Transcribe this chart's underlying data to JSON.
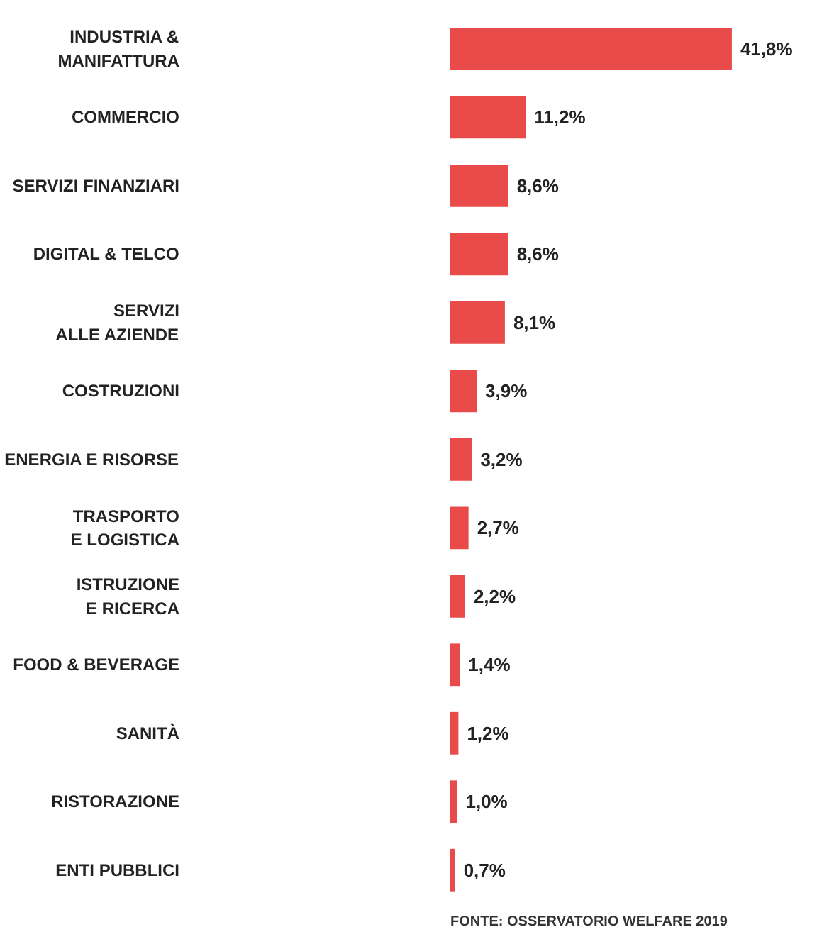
{
  "chart_data": {
    "type": "bar",
    "orientation": "horizontal",
    "categories": [
      "INDUSTRIA &\nMANIFATTURA",
      "COMMERCIO",
      "SERVIZI FINANZIARI",
      "DIGITAL & TELCO",
      "SERVIZI\nALLE AZIENDE",
      "COSTRUZIONI",
      "ENERGIA E RISORSE",
      "TRASPORTO\nE LOGISTICA",
      "ISTRUZIONE\nE RICERCA",
      "FOOD & BEVERAGE",
      "SANITÀ",
      "RISTORAZIONE",
      "ENTI PUBBLICI"
    ],
    "values": [
      41.8,
      11.2,
      8.6,
      8.6,
      8.1,
      3.9,
      3.2,
      2.7,
      2.2,
      1.4,
      1.2,
      1.0,
      0.7
    ],
    "value_labels": [
      "41,8%",
      "11,2%",
      "8,6%",
      "8,6%",
      "8,1%",
      "3,9%",
      "3,2%",
      "2,7%",
      "2,2%",
      "1,4%",
      "1,2%",
      "1,0%",
      "0,7%"
    ],
    "color": "#e84b4a",
    "annotations": [
      "FONTE: OSSERVATORIO WELFARE 2019"
    ],
    "grid": false
  }
}
